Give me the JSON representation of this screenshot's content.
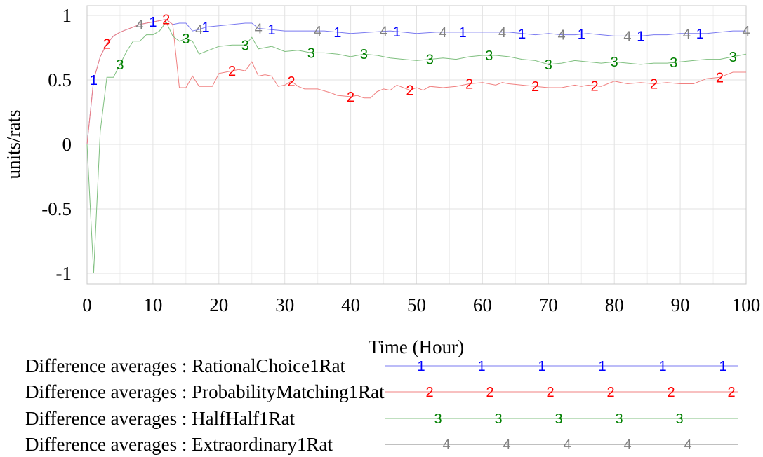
{
  "chart_data": {
    "type": "line",
    "xlabel": "Time (Hour)",
    "ylabel": "units/rats",
    "xlim": [
      0,
      100
    ],
    "ylim": [
      -1,
      1
    ],
    "x_ticks": [
      "0",
      "10",
      "20",
      "30",
      "40",
      "50",
      "60",
      "70",
      "80",
      "90",
      "100"
    ],
    "y_ticks": [
      "1",
      "0.5",
      "0",
      "-0.5",
      "-1"
    ],
    "grid": true,
    "legend_position": "bottom",
    "series": [
      {
        "name": "Difference averages : RationalChoice1Rat",
        "marker": "1",
        "color": "#0000ff",
        "line_color": "#7a7af0",
        "x": [
          0,
          1,
          2,
          3,
          4,
          5,
          6,
          7,
          8,
          9,
          10,
          11,
          12,
          13,
          14,
          15,
          16,
          17,
          18,
          20,
          22,
          24,
          25,
          26,
          28,
          30,
          33,
          36,
          38,
          40,
          43,
          46,
          48,
          50,
          53,
          56,
          58,
          60,
          62,
          64,
          66,
          68,
          70,
          72,
          74,
          76,
          78,
          80,
          82,
          84,
          86,
          88,
          90,
          92,
          94,
          96,
          98,
          100
        ],
        "y": [
          0.0,
          0.5,
          0.68,
          0.78,
          0.84,
          0.87,
          0.89,
          0.91,
          0.93,
          0.94,
          0.95,
          0.96,
          0.97,
          0.93,
          0.94,
          0.94,
          0.88,
          0.89,
          0.91,
          0.92,
          0.93,
          0.94,
          0.94,
          0.9,
          0.89,
          0.88,
          0.88,
          0.88,
          0.87,
          0.86,
          0.87,
          0.88,
          0.87,
          0.86,
          0.87,
          0.87,
          0.87,
          0.87,
          0.87,
          0.87,
          0.86,
          0.85,
          0.86,
          0.85,
          0.85,
          0.86,
          0.85,
          0.84,
          0.84,
          0.84,
          0.85,
          0.85,
          0.86,
          0.86,
          0.86,
          0.87,
          0.88,
          0.88
        ],
        "marker_x": [
          1,
          10,
          18,
          28,
          38,
          47,
          57,
          66,
          75,
          84,
          93
        ]
      },
      {
        "name": "Difference averages : ProbabilityMatching1Rat",
        "marker": "2",
        "color": "#ff0000",
        "line_color": "#f08080",
        "x": [
          0,
          1,
          2,
          3,
          4,
          5,
          6,
          7,
          8,
          9,
          10,
          11,
          12,
          13,
          14,
          15,
          16,
          17,
          18,
          19,
          20,
          21,
          22,
          23,
          24,
          25,
          26,
          27,
          28,
          29,
          30,
          31,
          32,
          33,
          35,
          37,
          38,
          40,
          41,
          42,
          43,
          44,
          45,
          46,
          47,
          48,
          49,
          50,
          51,
          52,
          54,
          56,
          58,
          60,
          62,
          63,
          64,
          66,
          68,
          70,
          72,
          74,
          75,
          76,
          78,
          80,
          82,
          84,
          86,
          88,
          90,
          92,
          94,
          96,
          98,
          100
        ],
        "y": [
          0.0,
          0.5,
          0.68,
          0.78,
          0.84,
          0.87,
          0.89,
          0.91,
          0.93,
          0.94,
          0.95,
          0.96,
          0.97,
          0.93,
          0.44,
          0.44,
          0.53,
          0.45,
          0.45,
          0.45,
          0.55,
          0.56,
          0.57,
          0.58,
          0.57,
          0.64,
          0.53,
          0.54,
          0.53,
          0.45,
          0.46,
          0.49,
          0.45,
          0.43,
          0.43,
          0.4,
          0.38,
          0.37,
          0.38,
          0.36,
          0.36,
          0.41,
          0.43,
          0.42,
          0.46,
          0.44,
          0.42,
          0.44,
          0.42,
          0.45,
          0.44,
          0.45,
          0.47,
          0.48,
          0.46,
          0.48,
          0.47,
          0.46,
          0.45,
          0.44,
          0.44,
          0.46,
          0.45,
          0.46,
          0.45,
          0.49,
          0.47,
          0.48,
          0.47,
          0.48,
          0.47,
          0.47,
          0.51,
          0.52,
          0.56,
          0.56
        ],
        "marker_x": [
          3,
          12,
          22,
          31,
          40,
          49,
          58,
          68,
          77,
          86,
          96
        ]
      },
      {
        "name": "Difference averages : HalfHalf1Rat",
        "marker": "3",
        "color": "#008000",
        "line_color": "#7fbf7f",
        "x": [
          0,
          1,
          2,
          3,
          4,
          5,
          6,
          7,
          8,
          9,
          10,
          11,
          12,
          13,
          14,
          15,
          16,
          17,
          18,
          20,
          22,
          24,
          25,
          26,
          28,
          30,
          32,
          34,
          36,
          38,
          40,
          42,
          44,
          46,
          48,
          50,
          52,
          54,
          56,
          58,
          60,
          62,
          64,
          66,
          68,
          70,
          72,
          74,
          76,
          78,
          80,
          82,
          84,
          86,
          88,
          90,
          92,
          94,
          96,
          98,
          100
        ],
        "y": [
          0.0,
          -1.0,
          0.1,
          0.52,
          0.52,
          0.62,
          0.72,
          0.8,
          0.8,
          0.85,
          0.85,
          0.88,
          0.95,
          0.84,
          0.8,
          0.82,
          0.8,
          0.7,
          0.72,
          0.76,
          0.77,
          0.77,
          0.83,
          0.74,
          0.76,
          0.72,
          0.73,
          0.71,
          0.71,
          0.7,
          0.68,
          0.7,
          0.69,
          0.67,
          0.66,
          0.65,
          0.66,
          0.67,
          0.66,
          0.68,
          0.69,
          0.69,
          0.68,
          0.66,
          0.65,
          0.62,
          0.63,
          0.65,
          0.64,
          0.63,
          0.64,
          0.63,
          0.62,
          0.63,
          0.63,
          0.64,
          0.65,
          0.66,
          0.66,
          0.68,
          0.7
        ],
        "marker_x": [
          5,
          15,
          24,
          34,
          42,
          52,
          61,
          70,
          80,
          89,
          98
        ]
      },
      {
        "name": "Difference averages : Extraordinary1Rat",
        "marker": "4",
        "color": "#808080",
        "line_color": "#808080",
        "x": [],
        "y": [],
        "marker_x": [
          8,
          17,
          26,
          35,
          45,
          54,
          63,
          72,
          82,
          91,
          100
        ]
      }
    ]
  }
}
